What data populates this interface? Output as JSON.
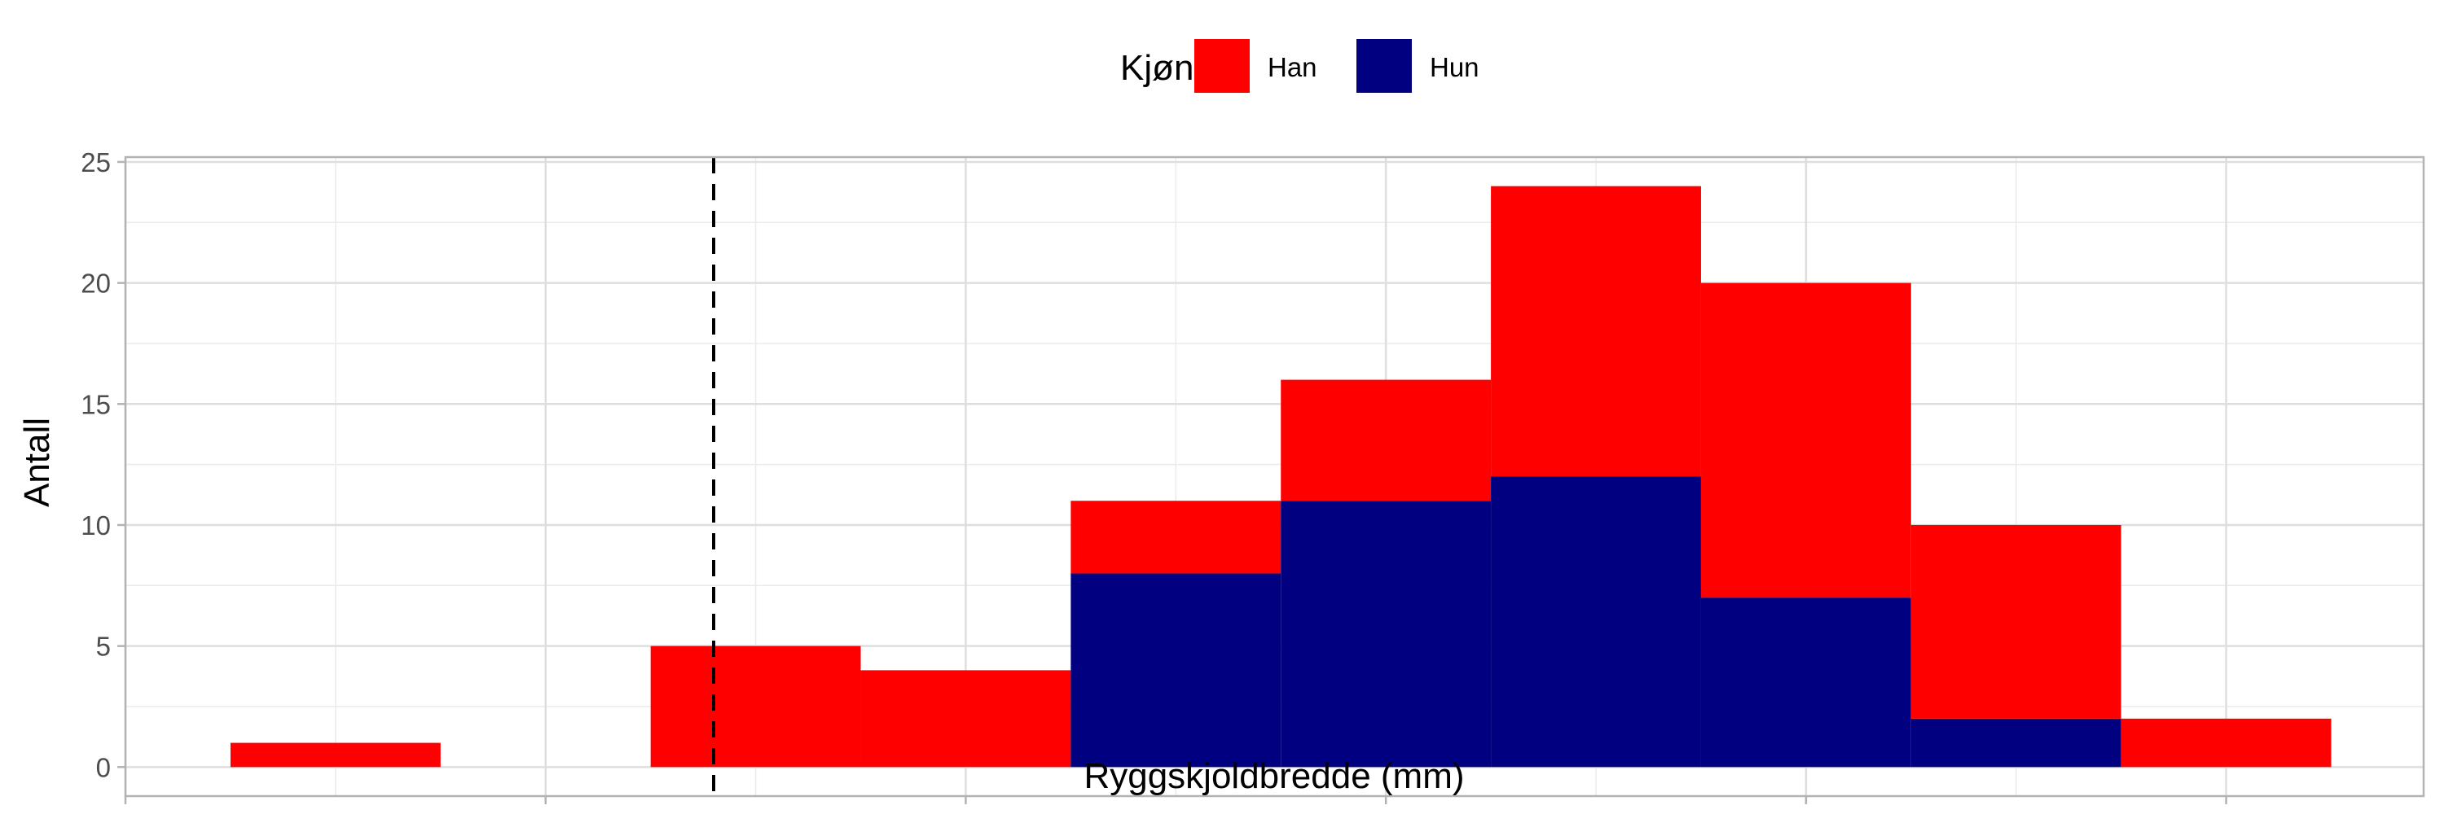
{
  "chart_data": {
    "type": "bar",
    "stacked": true,
    "xlabel": "Ryggskjoldbredde (mm)",
    "ylabel": "Antall",
    "xlim": [
      30,
      84.7
    ],
    "ylim": [
      -1.2,
      25.2
    ],
    "xticks": [
      30,
      40,
      50,
      60,
      70,
      80
    ],
    "yticks": [
      0,
      5,
      10,
      15,
      20,
      25
    ],
    "bin_width": 5,
    "bin_centers": [
      35,
      40,
      45,
      50,
      55,
      60,
      65,
      70,
      75,
      80
    ],
    "legend": {
      "title": "Kjønn",
      "position": "top"
    },
    "series": [
      {
        "name": "Han",
        "color": "#FF0000",
        "values": [
          1,
          0,
          5,
          4,
          3,
          5,
          12,
          13,
          8,
          2
        ]
      },
      {
        "name": "Hun",
        "color": "#000080",
        "values": [
          0,
          0,
          0,
          0,
          8,
          11,
          12,
          7,
          2,
          0
        ]
      }
    ],
    "vline": {
      "x": 44,
      "style": "dashed",
      "color": "#000000"
    },
    "grid": true
  }
}
